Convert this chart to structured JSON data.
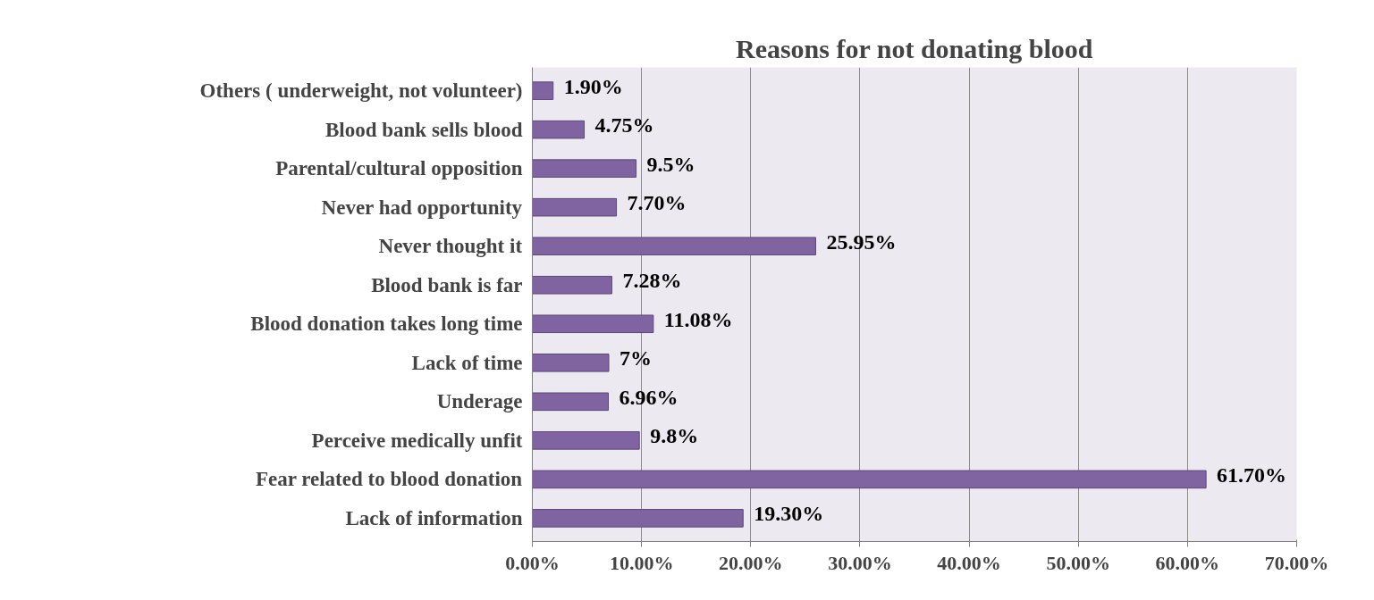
{
  "chart_data": {
    "type": "bar",
    "orientation": "horizontal",
    "title": "Reasons for not donating blood",
    "categories": [
      "Others ( underweight, not volunteer)",
      "Blood bank sells blood",
      "Parental/cultural opposition",
      "Never had opportunity",
      "Never thought it",
      "Blood bank is far",
      "Blood donation takes long time",
      "Lack of time",
      "Underage",
      "Perceive medically unfit",
      "Fear related to blood donation",
      "Lack of information"
    ],
    "values": [
      1.9,
      4.75,
      9.5,
      7.7,
      25.95,
      7.28,
      11.08,
      7,
      6.96,
      9.8,
      61.7,
      19.3
    ],
    "value_labels": [
      "1.90%",
      "4.75%",
      "9.5%",
      "7.70%",
      "25.95%",
      "7.28%",
      "11.08%",
      "7%",
      "6.96%",
      "9.8%",
      "61.70%",
      "19.30%"
    ],
    "color": "#8064a2",
    "xlim": [
      0,
      70
    ],
    "xticks": [
      {
        "value": 0,
        "label": "0.00%"
      },
      {
        "value": 10,
        "label": "10.00%"
      },
      {
        "value": 20,
        "label": "20.00%"
      },
      {
        "value": 30,
        "label": "30.00%"
      },
      {
        "value": 40,
        "label": "40.00%"
      },
      {
        "value": 50,
        "label": "50.00%"
      },
      {
        "value": 60,
        "label": "60.00%"
      },
      {
        "value": 70,
        "label": "70.00%"
      }
    ],
    "grid": "x"
  }
}
